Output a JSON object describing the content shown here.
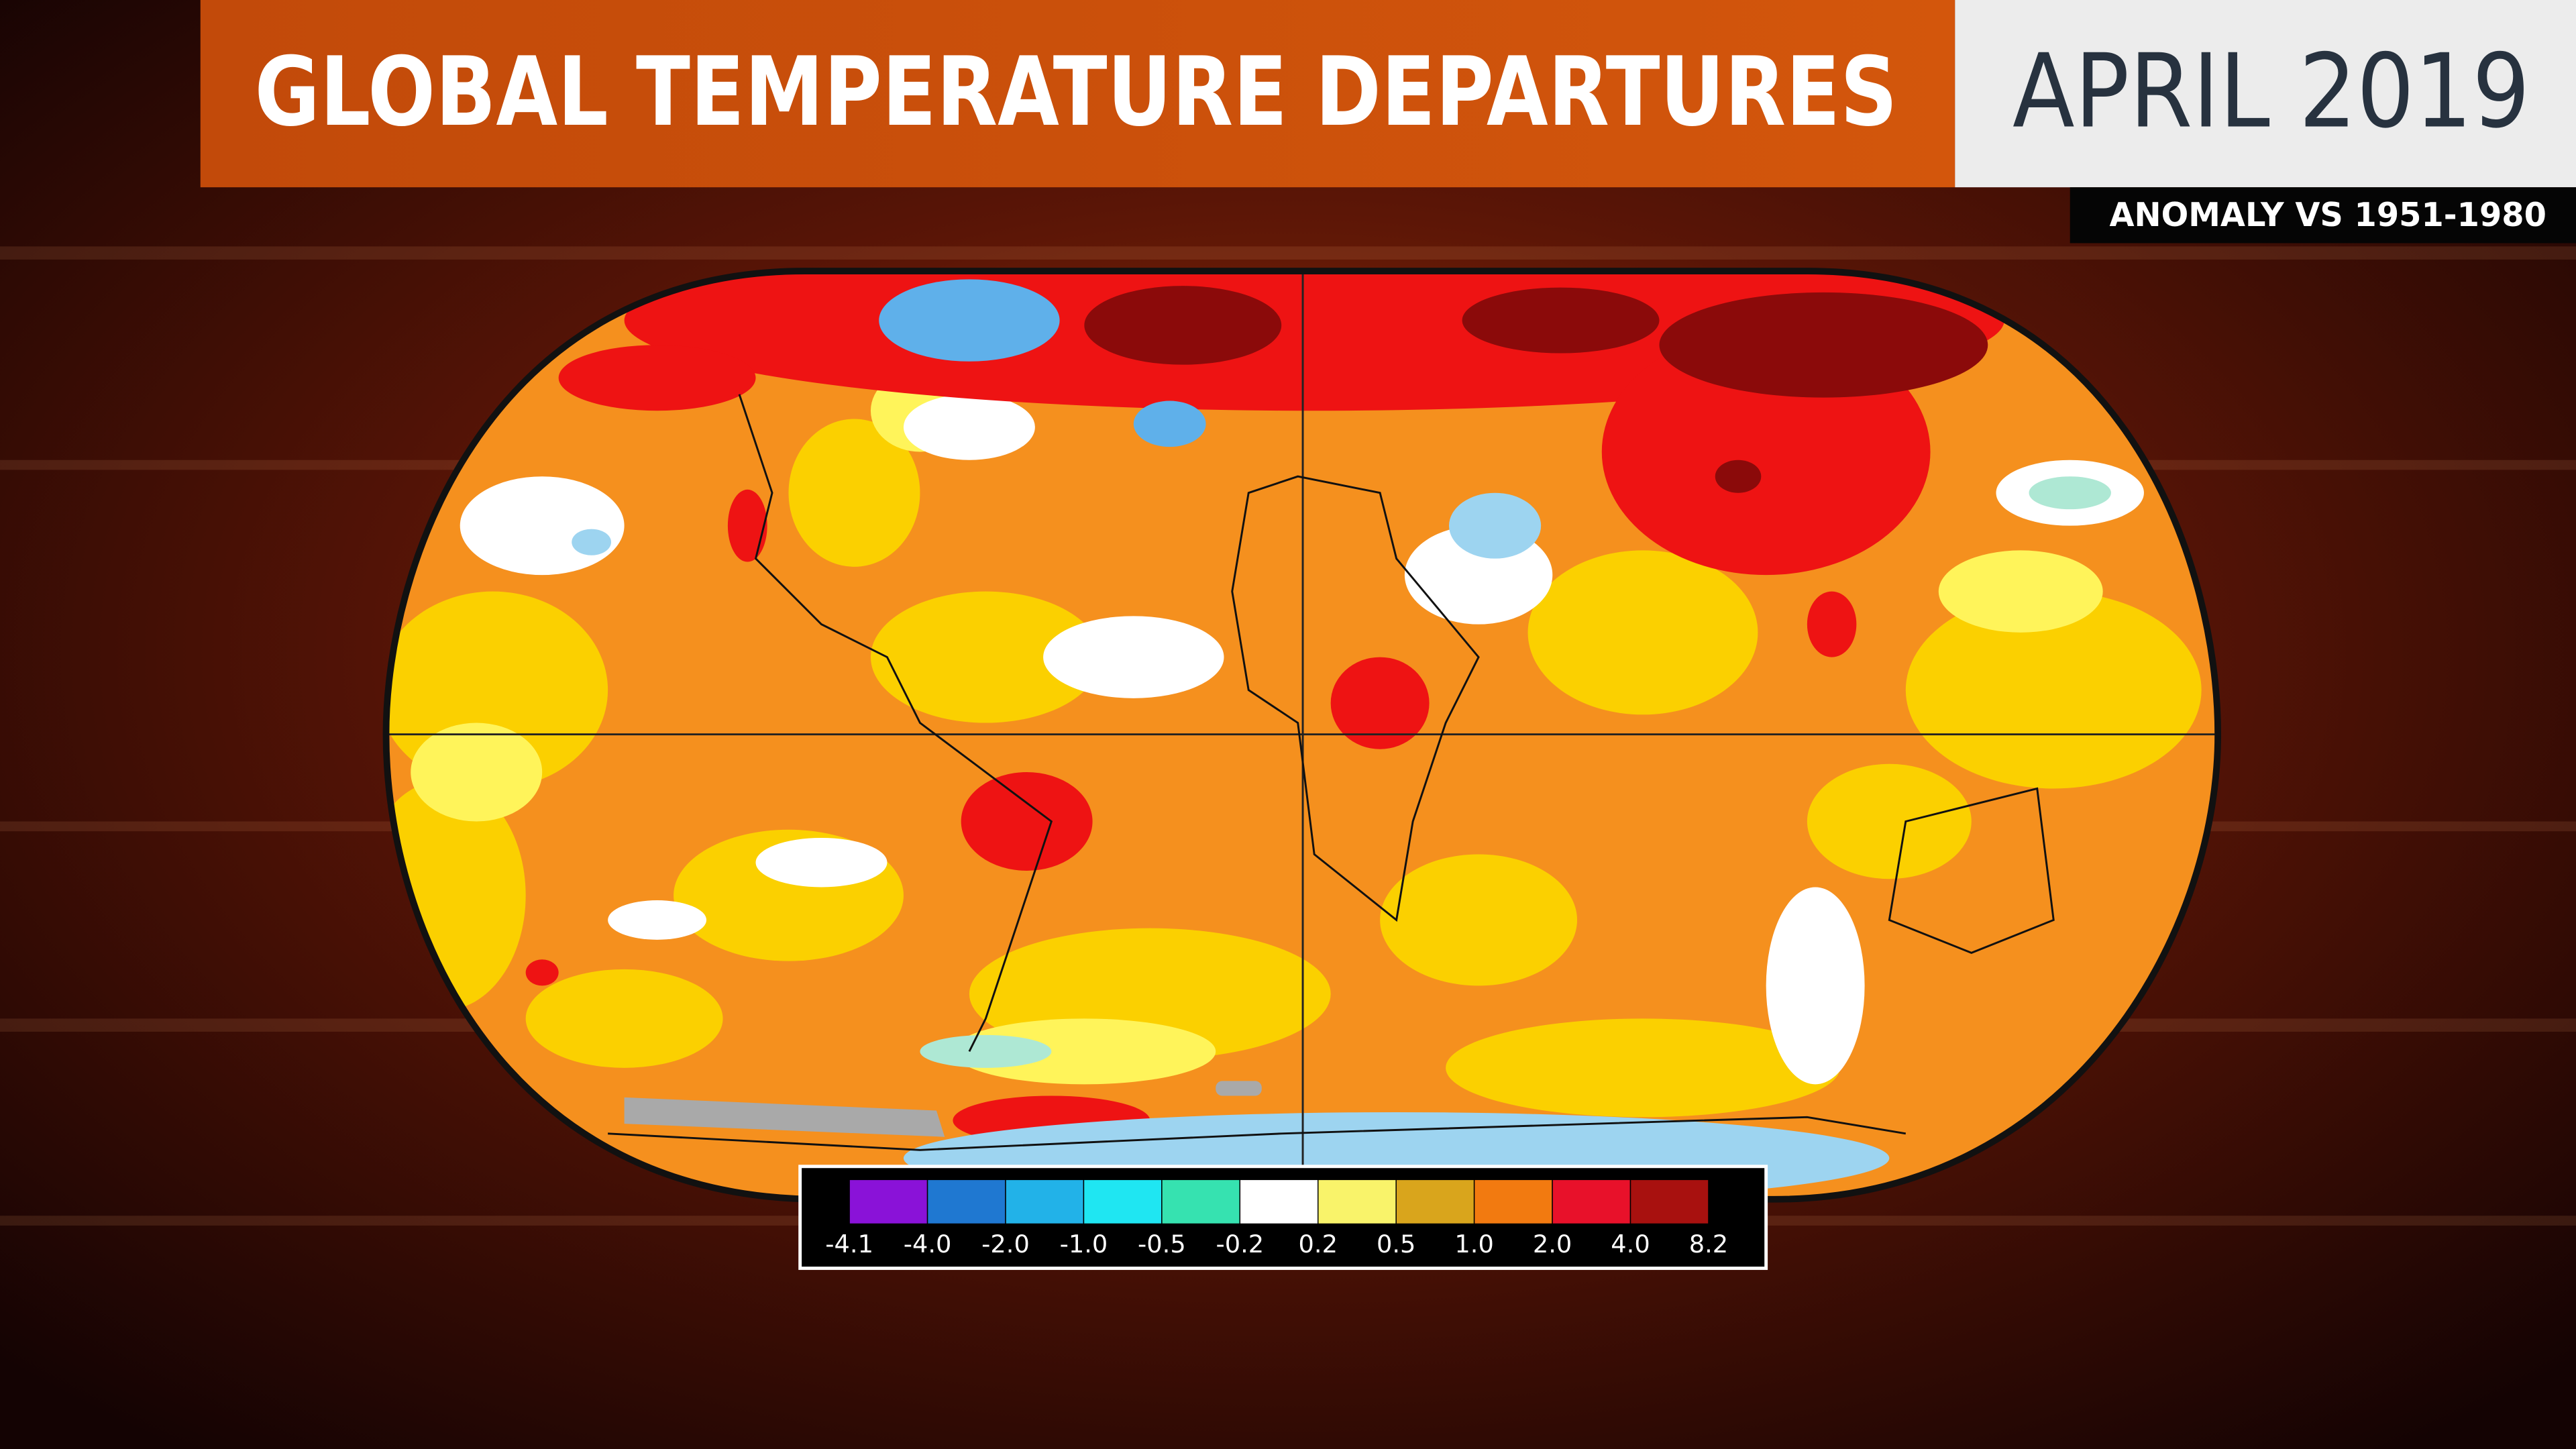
{
  "header": {
    "title": "GLOBAL TEMPERATURE DEPARTURES",
    "date": "APRIL 2019",
    "subtitle": "ANOMALY VS 1951-1980"
  },
  "legend": {
    "colors": [
      "#8a12d8",
      "#1f78d1",
      "#22b2e8",
      "#1fe6f2",
      "#36e2b0",
      "#ffffff",
      "#f9f36a",
      "#d9a51c",
      "#f27a10",
      "#e8112a",
      "#a8110f"
    ],
    "labels": [
      "-4.1",
      "-4.0",
      "-2.0",
      "-1.0",
      "-0.5",
      "-0.2",
      "0.2",
      "0.5",
      "1.0",
      "2.0",
      "4.0",
      "8.2"
    ]
  }
}
